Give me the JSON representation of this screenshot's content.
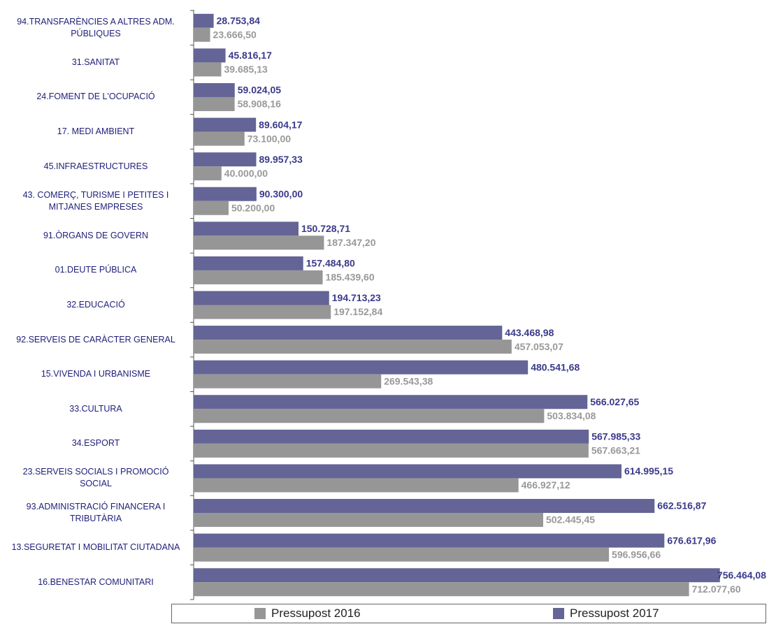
{
  "chart_data": {
    "type": "bar",
    "orientation": "horizontal",
    "categories": [
      "94.TRANSFARÈNCIES A ALTRES ADM. PÚBLIQUES",
      "31.SANITAT",
      "24.FOMENT DE L'OCUPACIÓ",
      "17. MEDI AMBIENT",
      "45.INFRAESTRUCTURES",
      "43. COMERÇ, TURISME I PETITES I MITJANES EMPRESES",
      "91.ÒRGANS DE GOVERN",
      "01.DEUTE PÚBLICA",
      "32.EDUCACIÓ",
      "92.SERVEIS DE CARÀCTER GENERAL",
      "15.VIVENDA I URBANISME",
      "33.CULTURA",
      "34.ESPORT",
      "23.SERVEIS SOCIALS I PROMOCIÓ SOCIAL",
      "93.ADMINISTRACIÓ FINANCERA I TRIBUTÀRIA",
      "13.SEGURETAT I MOBILITAT CIUTADANA",
      "16.BENESTAR COMUNITARI"
    ],
    "series": [
      {
        "name": "Pressupost 2016",
        "color": "#969696",
        "values": [
          23666.5,
          39685.13,
          58908.16,
          73100.0,
          40000.0,
          50200.0,
          187347.2,
          185439.6,
          197152.84,
          457053.07,
          269543.38,
          503834.08,
          567663.21,
          466927.12,
          502445.45,
          596956.66,
          712077.6
        ],
        "value_labels": [
          "23.666,50",
          "39.685,13",
          "58.908,16",
          "73.100,00",
          "40.000,00",
          "50.200,00",
          "187.347,20",
          "185.439,60",
          "197.152,84",
          "457.053,07",
          "269.543,38",
          "503.834,08",
          "567.663,21",
          "466.927,12",
          "502.445,45",
          "596.956,66",
          "712.077,60"
        ]
      },
      {
        "name": "Pressupost 2017",
        "color": "#646496",
        "values": [
          28753.84,
          45816.17,
          59024.05,
          89604.17,
          89957.33,
          90300.0,
          150728.71,
          157484.8,
          194713.23,
          443468.98,
          480541.68,
          566027.65,
          567985.33,
          614995.15,
          662516.87,
          676617.96,
          756464.08
        ],
        "value_labels": [
          "28.753,84",
          "45.816,17",
          "59.024,05",
          "89.604,17",
          "89.957,33",
          "90.300,00",
          "150.728,71",
          "157.484,80",
          "194.713,23",
          "443.468,98",
          "480.541,68",
          "566.027,65",
          "567.985,33",
          "614.995,15",
          "662.516,87",
          "676.617,96",
          "756.464,08"
        ]
      }
    ],
    "xlim": [
      0,
      820000
    ],
    "legend": "bottom"
  }
}
